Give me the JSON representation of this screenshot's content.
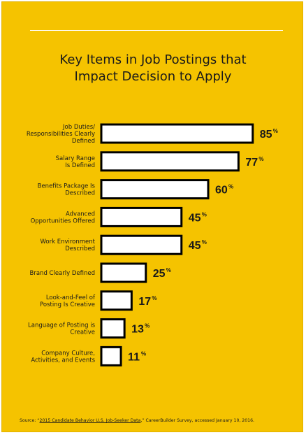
{
  "colors": {
    "background": "#f5c300",
    "bar_fill": "#ffffff",
    "bar_stroke": "#000000",
    "text": "#1a1a1a"
  },
  "chart_data": {
    "type": "bar",
    "orientation": "horizontal",
    "title": "Key Items in Job Postings that\nImpact Decision to Apply",
    "categories": [
      "Job Duties/ Responsibilities Clearly Defined",
      "Salary Range Is Defined",
      "Benefits Package Is Described",
      "Advanced Opportunities Offered",
      "Work Environment Described",
      "Brand Clearly Defined",
      "Look-and-Feel of Posting Is Creative",
      "Language of Posting is Creative",
      "Company Culture, Activities, and Events"
    ],
    "category_lines": [
      [
        "Job Duties/",
        "Responsibilities Clearly",
        "Defined"
      ],
      [
        "Salary Range",
        "Is Defined"
      ],
      [
        "Benefits Package Is",
        "Described"
      ],
      [
        "Advanced",
        "Opportunities Offered"
      ],
      [
        "Work Environment",
        "Described"
      ],
      [
        "Brand Clearly Defined"
      ],
      [
        "Look-and-Feel of",
        "Posting Is Creative"
      ],
      [
        "Language of Posting is",
        "Creative"
      ],
      [
        "Company Culture,",
        "Activities, and Events"
      ]
    ],
    "values": [
      85,
      77,
      60,
      45,
      45,
      25,
      17,
      13,
      11
    ],
    "value_labels": [
      "85",
      "77",
      "60",
      "45",
      "45",
      "25",
      "17",
      "13",
      "11"
    ],
    "value_suffix": "%",
    "xlim": [
      0,
      100
    ],
    "grid": false
  },
  "source": {
    "prefix": "Source: “",
    "link_text": "2015 Candidate Behavior U.S. Job-Seeker Data",
    "suffix": ",” CareerBuilder Survey, accessed January 10, 2016."
  }
}
